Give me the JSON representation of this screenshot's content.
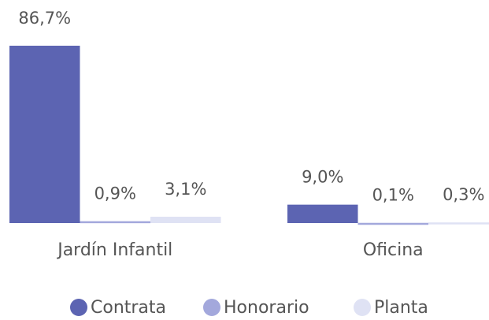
{
  "chart_data": {
    "type": "bar",
    "categories": [
      "Jardín Infantil",
      "Oficina"
    ],
    "series": [
      {
        "name": "Contrata",
        "color": "#5c64b2",
        "values": [
          86.7,
          9.0
        ],
        "value_labels": [
          "86,7%",
          "9,0%"
        ]
      },
      {
        "name": "Honorario",
        "color": "#a3a8dc",
        "values": [
          0.9,
          0.1
        ],
        "value_labels": [
          "0,9%",
          "0,1%"
        ]
      },
      {
        "name": "Planta",
        "color": "#dfe2f4",
        "values": [
          3.1,
          0.3
        ],
        "value_labels": [
          "3,1%",
          "0,3%"
        ]
      }
    ],
    "legend": "bottom"
  }
}
